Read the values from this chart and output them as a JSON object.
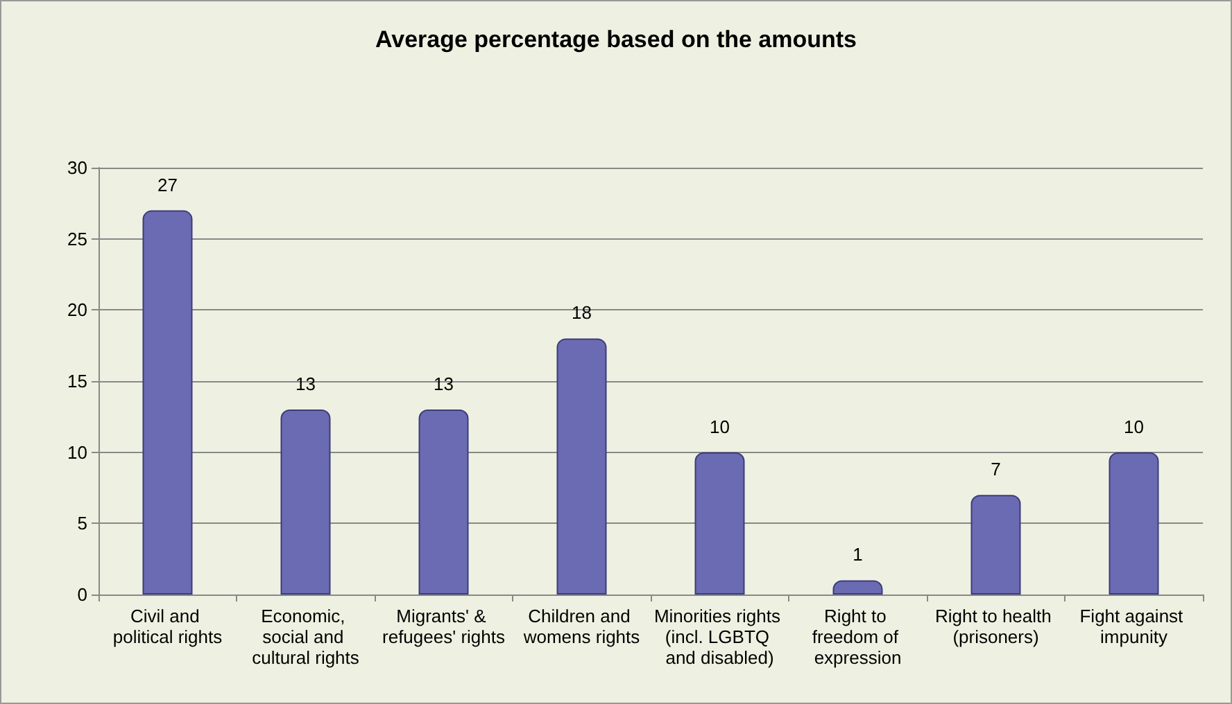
{
  "chart_data": {
    "type": "bar",
    "title": "Average percentage based on the amounts",
    "categories": [
      "Civil and political rights",
      "Economic, social and cultural rights",
      "Migrants' & refugees' rights",
      "Children and womens rights",
      "Minorities rights (incl. LGBTQ and disabled)",
      "Right to freedom of expression",
      "Right to health (prisoners)",
      "Fight against impunity"
    ],
    "values": [
      27,
      13,
      13,
      18,
      10,
      1,
      7,
      10
    ],
    "color": "#6b6bb3",
    "ylim": [
      0,
      30
    ],
    "yticks": [
      0,
      5,
      10,
      15,
      20,
      25,
      30
    ],
    "grid": "y",
    "data_labels": true
  }
}
